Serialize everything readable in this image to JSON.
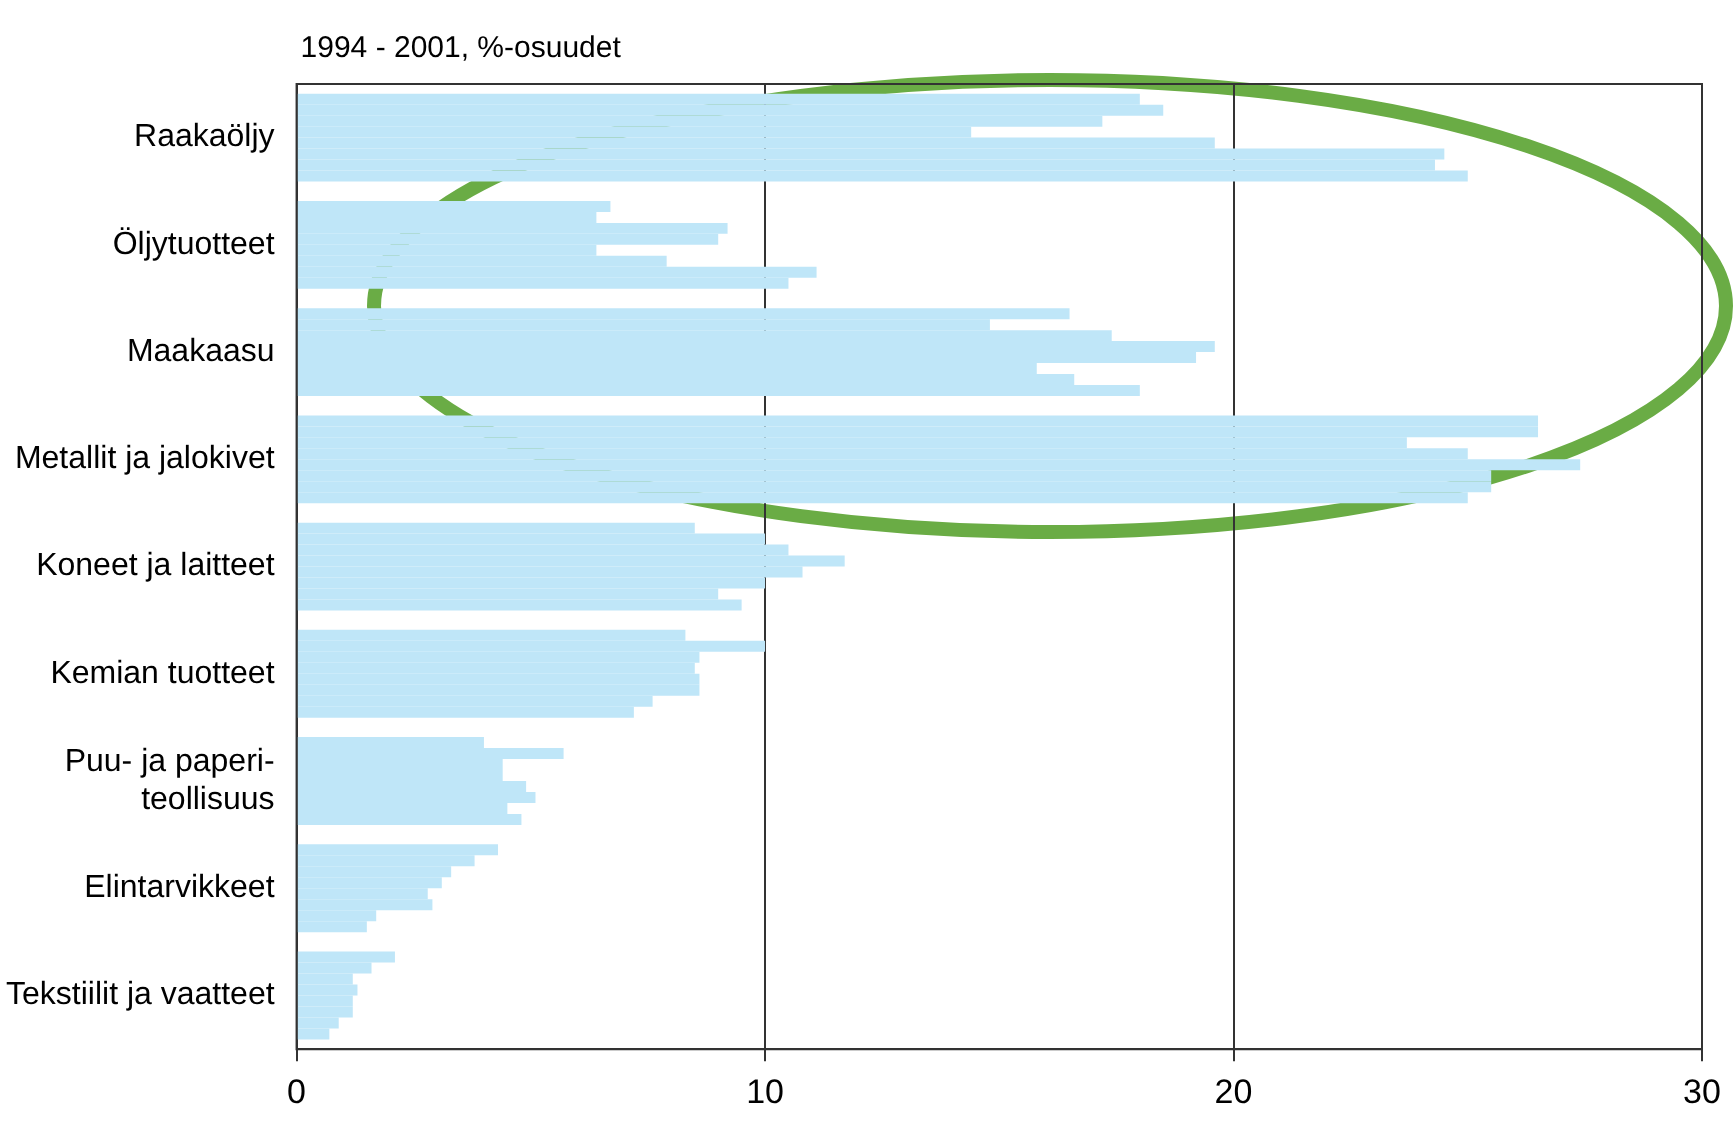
{
  "chart_data": {
    "type": "bar",
    "orientation": "horizontal",
    "title": "1994 - 2001, %-osuudet",
    "categories": [
      "Raakaöljy",
      "Öljytuotteet",
      "Maakaasu",
      "Metallit ja jalokivet",
      "Koneet ja laitteet",
      "Kemian tuotteet",
      "Puu- ja paperi-\nteollisuus",
      "Elintarvikkeet",
      "Tekstiilit ja vaatteet"
    ],
    "series": [
      {
        "color": "#bfe6f8",
        "values": [
          18.0,
          6.7,
          16.5,
          26.5,
          8.5,
          8.3,
          4.0,
          4.3,
          2.1
        ]
      },
      {
        "color": "#bfe6f8",
        "values": [
          18.5,
          6.4,
          14.8,
          26.5,
          10.0,
          10.0,
          5.7,
          3.8,
          1.6
        ]
      },
      {
        "color": "#bfe6f8",
        "values": [
          17.2,
          9.2,
          17.4,
          23.7,
          10.5,
          8.6,
          4.4,
          3.3,
          1.2
        ]
      },
      {
        "color": "#bfe6f8",
        "values": [
          14.4,
          9.0,
          19.6,
          25.0,
          11.7,
          8.5,
          4.4,
          3.1,
          1.3
        ]
      },
      {
        "color": "#bfe6f8",
        "values": [
          19.6,
          6.4,
          19.2,
          27.4,
          10.8,
          8.6,
          4.9,
          2.8,
          1.2
        ]
      },
      {
        "color": "#bfe6f8",
        "values": [
          24.5,
          7.9,
          15.8,
          25.5,
          10.0,
          8.6,
          5.1,
          2.9,
          1.2
        ]
      },
      {
        "color": "#bfe6f8",
        "values": [
          24.3,
          11.1,
          16.6,
          25.5,
          9.0,
          7.6,
          4.5,
          1.7,
          0.9
        ]
      },
      {
        "color": "#bfe6f8",
        "values": [
          25.0,
          10.5,
          18.0,
          25.0,
          9.5,
          7.2,
          4.8,
          1.5,
          0.7
        ]
      }
    ],
    "xlim": [
      0,
      30
    ],
    "xticks": [
      0,
      10,
      20,
      30
    ],
    "grid": "x"
  }
}
